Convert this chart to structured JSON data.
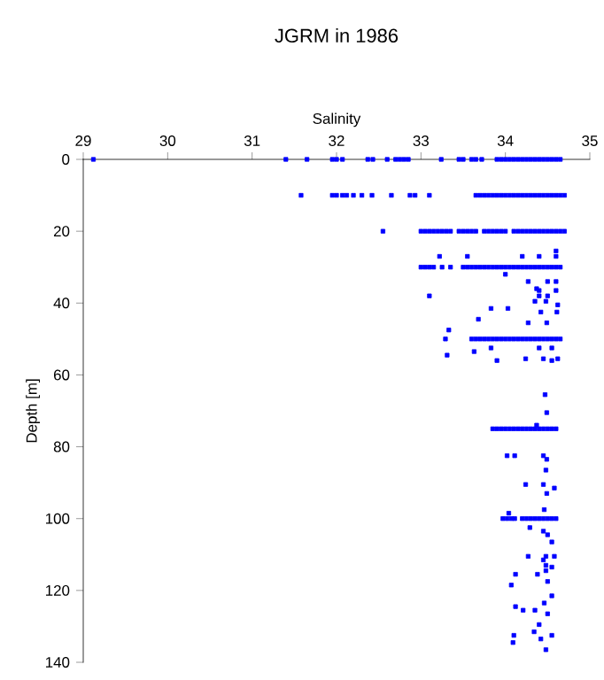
{
  "chart_data": {
    "type": "scatter",
    "title": "JGRM in 1986",
    "xlabel": "Salinity",
    "ylabel": "Depth [m]",
    "xlim": [
      29,
      35
    ],
    "xticks": [
      29,
      30,
      31,
      32,
      33,
      34,
      35
    ],
    "ylim": [
      140,
      0
    ],
    "yticks": [
      0,
      20,
      40,
      60,
      80,
      100,
      120,
      140
    ],
    "marker": "square",
    "series": [
      {
        "color": "#0000ff",
        "x": [
          29.12,
          31.4,
          31.65,
          31.95,
          32.0,
          32.07,
          32.37,
          32.43,
          32.6,
          32.7,
          32.75,
          32.8,
          32.85,
          33.24,
          33.45,
          33.5,
          33.6,
          33.65,
          33.72,
          33.9,
          33.95,
          34.0,
          34.05,
          34.1,
          34.15,
          34.2,
          34.25,
          34.3,
          34.35,
          34.4,
          34.45,
          34.5,
          34.55,
          34.6,
          34.65
        ],
        "values": [
          0,
          0,
          0,
          0,
          0,
          0,
          0,
          0,
          0,
          0,
          0,
          0,
          0,
          0,
          0,
          0,
          0,
          0,
          0,
          0,
          0,
          0,
          0,
          0,
          0,
          0,
          0,
          0,
          0,
          0,
          0,
          0,
          0,
          0,
          0
        ]
      },
      {
        "color": "#0000ff",
        "x": [
          31.58,
          31.95,
          32.0,
          32.07,
          32.12,
          32.2,
          32.3,
          32.42,
          32.65,
          32.87,
          32.93,
          33.1,
          33.65,
          33.7,
          33.75,
          33.8,
          33.85,
          33.9,
          33.95,
          34.0,
          34.05,
          34.1,
          34.15,
          34.2,
          34.25,
          34.3,
          34.35,
          34.4,
          34.45,
          34.5,
          34.55,
          34.6,
          34.65,
          34.7
        ],
        "values": [
          10,
          10,
          10,
          10,
          10,
          10,
          10,
          10,
          10,
          10,
          10,
          10,
          10,
          10,
          10,
          10,
          10,
          10,
          10,
          10,
          10,
          10,
          10,
          10,
          10,
          10,
          10,
          10,
          10,
          10,
          10,
          10,
          10,
          10
        ]
      },
      {
        "color": "#0000ff",
        "x": [
          32.55,
          33.0,
          33.05,
          33.1,
          33.15,
          33.2,
          33.25,
          33.3,
          33.35,
          33.45,
          33.5,
          33.55,
          33.6,
          33.65,
          33.75,
          33.8,
          33.85,
          33.9,
          33.95,
          34.0,
          34.1,
          34.15,
          34.2,
          34.25,
          34.3,
          34.35,
          34.4,
          34.45,
          34.5,
          34.55,
          34.6,
          34.65,
          34.7
        ],
        "values": [
          20,
          20,
          20,
          20,
          20,
          20,
          20,
          20,
          20,
          20,
          20,
          20,
          20,
          20,
          20,
          20,
          20,
          20,
          20,
          20,
          20,
          20,
          20,
          20,
          20,
          20,
          20,
          20,
          20,
          20,
          20,
          20,
          20
        ]
      },
      {
        "color": "#0000ff",
        "x": [
          33.0,
          33.05,
          33.1,
          33.15,
          33.25,
          33.35,
          33.5,
          33.55,
          33.6,
          33.65,
          33.7,
          33.75,
          33.8,
          33.85,
          33.9,
          33.95,
          34.0,
          34.05,
          34.1,
          34.15,
          34.2,
          34.25,
          34.3,
          34.35,
          34.4,
          34.45,
          34.5,
          34.55,
          34.6,
          34.65
        ],
        "values": [
          30,
          30,
          30,
          30,
          30,
          30,
          30,
          30,
          30,
          30,
          30,
          30,
          30,
          30,
          30,
          30,
          30,
          30,
          30,
          30,
          30,
          30,
          30,
          30,
          30,
          30,
          30,
          30,
          30,
          30
        ]
      },
      {
        "color": "#0000ff",
        "x": [
          33.29,
          33.6,
          33.65,
          33.7,
          33.75,
          33.8,
          33.85,
          33.9,
          33.95,
          34.0,
          34.05,
          34.1,
          34.15,
          34.2,
          34.25,
          34.3,
          34.35,
          34.4,
          34.45,
          34.5,
          34.55,
          34.6,
          34.65
        ],
        "values": [
          50,
          50,
          50,
          50,
          50,
          50,
          50,
          50,
          50,
          50,
          50,
          50,
          50,
          50,
          50,
          50,
          50,
          50,
          50,
          50,
          50,
          50,
          50
        ]
      },
      {
        "color": "#0000ff",
        "x": [
          33.85,
          33.9,
          33.95,
          34.0,
          34.05,
          34.1,
          34.15,
          34.2,
          34.25,
          34.3,
          34.35,
          34.4,
          34.45,
          34.5,
          34.55,
          34.6
        ],
        "values": [
          75,
          75,
          75,
          75,
          75,
          75,
          75,
          75,
          75,
          75,
          75,
          75,
          75,
          75,
          75,
          75
        ]
      },
      {
        "color": "#0000ff",
        "x": [
          33.97,
          34.02,
          34.07,
          34.11,
          34.2,
          34.25,
          34.3,
          34.35,
          34.4,
          34.45,
          34.5,
          34.55,
          34.6
        ],
        "values": [
          100,
          100,
          100,
          100,
          100,
          100,
          100,
          100,
          100,
          100,
          100,
          100,
          100
        ]
      },
      {
        "color": "#0000ff",
        "x": [
          33.22,
          33.55,
          34.2,
          34.4,
          34.6,
          34.6,
          34.0,
          34.27,
          34.5,
          34.6,
          34.4,
          34.6,
          33.1,
          34.4,
          34.5,
          34.37,
          34.35,
          34.48,
          34.62,
          33.83,
          34.03,
          34.42,
          34.61,
          33.68,
          34.27,
          34.49,
          33.33,
          33.63,
          33.83,
          34.4,
          34.55,
          33.31,
          33.9,
          34.24,
          34.45,
          34.55,
          34.62,
          34.47,
          34.49,
          34.37,
          34.02,
          34.11,
          34.45,
          34.49,
          34.48,
          34.24,
          34.45,
          34.58,
          34.49,
          34.04,
          34.46,
          34.29,
          34.45,
          34.5,
          34.55,
          34.27,
          34.48,
          34.58,
          34.45,
          34.48,
          34.38,
          34.48,
          34.55,
          34.12,
          34.5,
          34.07,
          34.55,
          34.46,
          34.12,
          34.21,
          34.35,
          34.5,
          34.4,
          34.34,
          34.55,
          34.1,
          34.09,
          34.42,
          34.48
        ],
        "values": [
          27,
          27,
          27,
          27,
          27,
          25.5,
          32,
          34,
          34,
          34,
          36.5,
          36.5,
          38,
          38,
          38,
          36,
          39.5,
          39.5,
          40.5,
          41.5,
          41.5,
          42.5,
          42.5,
          44.5,
          45.5,
          45.5,
          47.5,
          53.5,
          52.5,
          52.5,
          52.5,
          54.5,
          56,
          55.5,
          55.5,
          56,
          55.5,
          65.5,
          70.5,
          74,
          82.5,
          82.5,
          82.5,
          83.5,
          86.5,
          90.5,
          90.5,
          91.5,
          93,
          98.5,
          97.5,
          102.5,
          103.5,
          104.5,
          106.5,
          110.5,
          110.5,
          110.5,
          111.5,
          113,
          115.5,
          114.5,
          113.5,
          115.5,
          117.5,
          118.5,
          121.5,
          123.5,
          124.5,
          125.5,
          125.5,
          126.5,
          129.5,
          131.5,
          132.5,
          132.5,
          134.5,
          133.5,
          136.5
        ]
      }
    ]
  }
}
